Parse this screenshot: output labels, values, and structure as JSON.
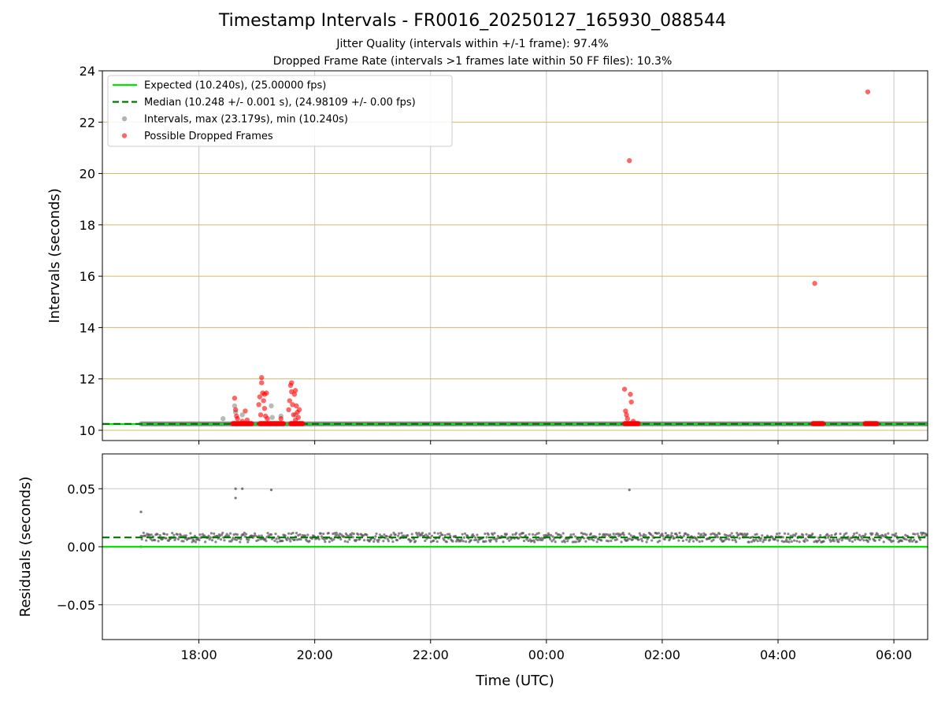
{
  "figure": {
    "title": "Timestamp Intervals - FR0016_20250127_165930_088544",
    "subtitle_1": "Jitter Quality (intervals within +/-1 frame): 97.4%",
    "subtitle_2": "Dropped Frame Rate (intervals >1 frames late within 50 FF files): 10.3%"
  },
  "colors": {
    "expected": "#00e600",
    "median": "#007700",
    "intervals": "#808080",
    "dropped": "#ff0000",
    "hgrid_top": "#d4b96a",
    "grid": "#c8c8c8"
  },
  "chart_data": [
    {
      "type": "scatter",
      "xlabel": "",
      "ylabel": "Intervals (seconds)",
      "ylim": [
        9.6,
        24
      ],
      "yticks": [
        "10",
        "12",
        "14",
        "16",
        "18",
        "20",
        "22",
        "24"
      ],
      "xlim": [
        "16:20",
        "06:35"
      ],
      "x_ticks": [
        "18:00",
        "20:00",
        "22:00",
        "00:00",
        "02:00",
        "04:00",
        "06:00"
      ],
      "grid": true,
      "legend_position": "top-left",
      "legend": [
        "Expected (10.240s), (25.00000 fps)",
        "Median (10.248 +/- 0.001 s), (24.98109 +/- 0.00 fps)",
        "Intervals, max (23.179s), min (10.240s)",
        "Possible Dropped Frames"
      ],
      "series": [
        {
          "name": "Expected (10.240s), (25.00000 fps)",
          "kind": "hline",
          "y": 10.24
        },
        {
          "name": "Median (10.248 +/- 0.001 s), (24.98109 +/- 0.00 fps)",
          "kind": "hline-dashed",
          "y": 10.248
        },
        {
          "name": "Intervals, max (23.179s), min (10.240s)",
          "kind": "scatter",
          "x_range": [
            "17:00",
            "06:35"
          ],
          "y_baseline": 10.248,
          "outliers": [
            {
              "x": "18:25",
              "y": 10.45
            },
            {
              "x": "18:37",
              "y": 10.95
            },
            {
              "x": "18:38",
              "y": 10.7
            },
            {
              "x": "18:45",
              "y": 10.6
            },
            {
              "x": "19:15",
              "y": 10.95
            },
            {
              "x": "19:16",
              "y": 10.5
            },
            {
              "x": "19:25",
              "y": 10.55
            },
            {
              "x": "19:40",
              "y": 10.6
            }
          ]
        },
        {
          "name": "Possible Dropped Frames",
          "kind": "scatter",
          "points": [
            {
              "x": "18:37",
              "y": 11.25
            },
            {
              "x": "18:38",
              "y": 10.8
            },
            {
              "x": "18:39",
              "y": 10.55
            },
            {
              "x": "18:40",
              "y": 10.45
            },
            {
              "x": "18:45",
              "y": 10.35
            },
            {
              "x": "18:48",
              "y": 10.75
            },
            {
              "x": "18:50",
              "y": 10.4
            },
            {
              "x": "19:02",
              "y": 11.0
            },
            {
              "x": "19:03",
              "y": 11.3
            },
            {
              "x": "19:04",
              "y": 10.6
            },
            {
              "x": "19:05",
              "y": 12.05
            },
            {
              "x": "19:05",
              "y": 11.85
            },
            {
              "x": "19:06",
              "y": 11.45
            },
            {
              "x": "19:07",
              "y": 11.15
            },
            {
              "x": "19:08",
              "y": 10.85
            },
            {
              "x": "19:08",
              "y": 11.4
            },
            {
              "x": "19:09",
              "y": 10.55
            },
            {
              "x": "19:10",
              "y": 11.45
            },
            {
              "x": "19:11",
              "y": 10.45
            },
            {
              "x": "19:25",
              "y": 10.45
            },
            {
              "x": "19:33",
              "y": 10.8
            },
            {
              "x": "19:34",
              "y": 11.15
            },
            {
              "x": "19:35",
              "y": 11.75
            },
            {
              "x": "19:36",
              "y": 11.5
            },
            {
              "x": "19:36",
              "y": 11.85
            },
            {
              "x": "19:37",
              "y": 11.0
            },
            {
              "x": "19:38",
              "y": 10.6
            },
            {
              "x": "19:39",
              "y": 11.4
            },
            {
              "x": "19:40",
              "y": 10.4
            },
            {
              "x": "19:40",
              "y": 11.55
            },
            {
              "x": "19:41",
              "y": 10.95
            },
            {
              "x": "19:42",
              "y": 10.7
            },
            {
              "x": "19:43",
              "y": 10.5
            },
            {
              "x": "19:44",
              "y": 10.8
            },
            {
              "x": "01:21",
              "y": 11.6
            },
            {
              "x": "01:22",
              "y": 10.75
            },
            {
              "x": "01:23",
              "y": 10.6
            },
            {
              "x": "01:24",
              "y": 10.45
            },
            {
              "x": "01:26",
              "y": 20.5
            },
            {
              "x": "01:27",
              "y": 11.4
            },
            {
              "x": "01:28",
              "y": 11.1
            },
            {
              "x": "01:30",
              "y": 10.35
            },
            {
              "x": "04:38",
              "y": 15.72
            },
            {
              "x": "05:33",
              "y": 23.18
            }
          ],
          "clusters": [
            {
              "from": "18:35",
              "to": "18:55",
              "y": 10.26
            },
            {
              "from": "19:03",
              "to": "19:28",
              "y": 10.26
            },
            {
              "from": "19:35",
              "to": "19:48",
              "y": 10.26
            },
            {
              "from": "01:21",
              "to": "01:36",
              "y": 10.26
            },
            {
              "from": "04:36",
              "to": "04:47",
              "y": 10.26
            },
            {
              "from": "05:30",
              "to": "05:43",
              "y": 10.26
            }
          ]
        }
      ]
    },
    {
      "type": "scatter",
      "xlabel": "Time (UTC)",
      "ylabel": "Residuals (seconds)",
      "ylim": [
        -0.08,
        0.08
      ],
      "yticks": [
        "−0.05",
        "0.00",
        "0.05"
      ],
      "xlim": [
        "16:20",
        "06:35"
      ],
      "x_ticks": [
        "18:00",
        "20:00",
        "22:00",
        "00:00",
        "02:00",
        "04:00",
        "06:00"
      ],
      "grid": true,
      "series": [
        {
          "name": "",
          "kind": "hline",
          "y": 0.0
        },
        {
          "name": "",
          "kind": "hline-dashed",
          "y": 0.008
        },
        {
          "name": "",
          "kind": "scatter",
          "x_range": [
            "17:00",
            "06:35"
          ],
          "band": [
            0.004,
            0.012
          ],
          "outliers": [
            {
              "x": "17:00",
              "y": 0.03
            },
            {
              "x": "17:00",
              "y": 0.0
            },
            {
              "x": "18:38",
              "y": 0.05
            },
            {
              "x": "18:38",
              "y": 0.042
            },
            {
              "x": "18:45",
              "y": 0.05
            },
            {
              "x": "19:15",
              "y": 0.049
            },
            {
              "x": "01:26",
              "y": 0.049
            }
          ]
        }
      ]
    }
  ]
}
